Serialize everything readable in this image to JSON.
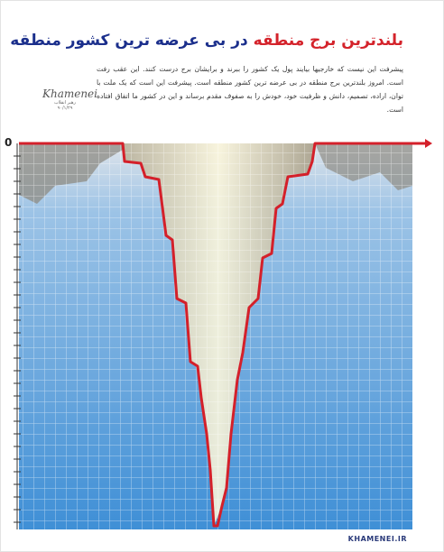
{
  "header": {
    "title_part1": "بلندترین برج منطقه",
    "title_part2": "در بی عرضه ترین کشور منطقه"
  },
  "quote": {
    "text": "پیشرفت این نیست که خارجیها بیایند پول یک کشور را ببرند و برایشان برج درست کنند. این عقب رفت است. امروز بلندترین برج منطقه در بی عرضه ترین کشور منطقه است. پیشرفت این است که یک ملت با توان، اراده، تصمیم، دانش و ظرفیت خود، خودش را به صفوف مقدم برساند و این در کشور ما اتفاق افتاده است."
  },
  "signature": {
    "name": "Khamenei",
    "source": "رهبر انقلاب",
    "date": "۹۰/۱/۲۹"
  },
  "axis": {
    "zero_label": "0"
  },
  "footer": {
    "logo": "KHAMENEI.IR"
  }
}
